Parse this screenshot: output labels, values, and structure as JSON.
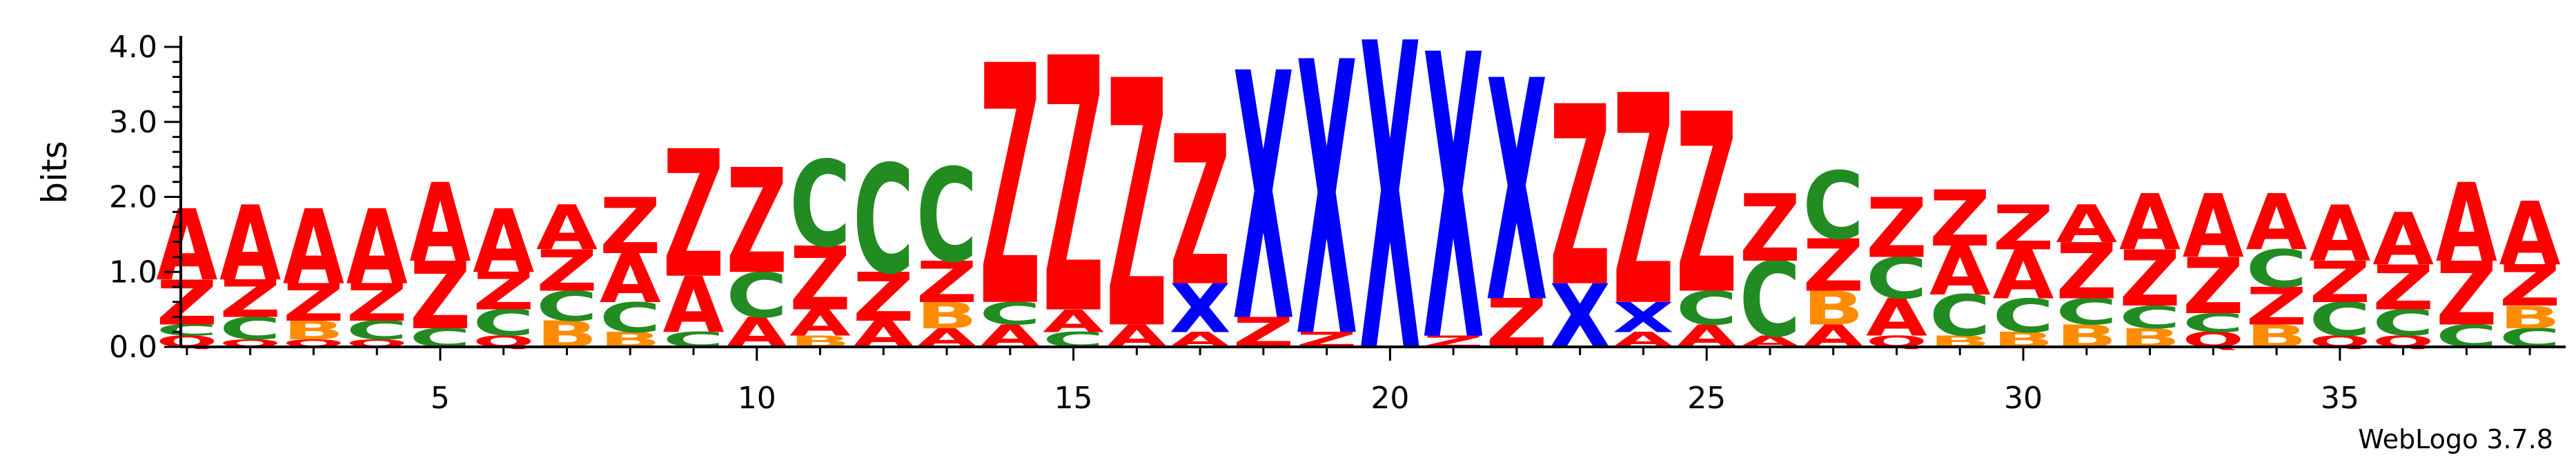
{
  "chart_data": {
    "type": "sequence-logo",
    "ylabel": "bits",
    "ylim": [
      0,
      4.0
    ],
    "yticks": [
      "0.0",
      "1.0",
      "2.0",
      "3.0",
      "4.0"
    ],
    "xticks": [
      5,
      10,
      15,
      20,
      25,
      30,
      35
    ],
    "branding": "WebLogo 3.7.8",
    "colors": {
      "A": "#ff0000",
      "Z": "#ff0000",
      "C": "#228b22",
      "B": "#ff8c00",
      "X": "#0000ff",
      "Q": "#ff0000",
      "O": "#ff0000"
    },
    "positions": [
      {
        "pos": 1,
        "letters": [
          [
            "Q",
            0.15
          ],
          [
            "C",
            0.15
          ],
          [
            "Z",
            0.6
          ],
          [
            "A",
            0.95
          ]
        ]
      },
      {
        "pos": 2,
        "letters": [
          [
            "O",
            0.1
          ],
          [
            "C",
            0.3
          ],
          [
            "Z",
            0.5
          ],
          [
            "A",
            1.0
          ]
        ]
      },
      {
        "pos": 3,
        "letters": [
          [
            "Q",
            0.1
          ],
          [
            "B",
            0.25
          ],
          [
            "Z",
            0.5
          ],
          [
            "A",
            1.0
          ]
        ]
      },
      {
        "pos": 4,
        "letters": [
          [
            "Q",
            0.1
          ],
          [
            "C",
            0.25
          ],
          [
            "Z",
            0.5
          ],
          [
            "A",
            1.0
          ]
        ]
      },
      {
        "pos": 5,
        "letters": [
          [
            "C",
            0.25
          ],
          [
            "Z",
            0.9
          ],
          [
            "A",
            1.05
          ]
        ]
      },
      {
        "pos": 6,
        "letters": [
          [
            "Q",
            0.15
          ],
          [
            "C",
            0.35
          ],
          [
            "Z",
            0.5
          ],
          [
            "A",
            0.85
          ]
        ]
      },
      {
        "pos": 7,
        "letters": [
          [
            "B",
            0.35
          ],
          [
            "C",
            0.4
          ],
          [
            "Z",
            0.55
          ],
          [
            "A",
            0.6
          ]
        ]
      },
      {
        "pos": 8,
        "letters": [
          [
            "B",
            0.2
          ],
          [
            "C",
            0.4
          ],
          [
            "A",
            0.65
          ],
          [
            "Z",
            0.75
          ]
        ]
      },
      {
        "pos": 9,
        "letters": [
          [
            "C",
            0.2
          ],
          [
            "A",
            0.75
          ],
          [
            "Z",
            1.7
          ]
        ]
      },
      {
        "pos": 10,
        "letters": [
          [
            "A",
            0.4
          ],
          [
            "C",
            0.6
          ],
          [
            "Z",
            1.4
          ]
        ]
      },
      {
        "pos": 11,
        "letters": [
          [
            "B",
            0.15
          ],
          [
            "A",
            0.35
          ],
          [
            "Z",
            0.85
          ],
          [
            "C",
            1.15
          ]
        ]
      },
      {
        "pos": 12,
        "letters": [
          [
            "A",
            0.35
          ],
          [
            "Z",
            0.65
          ],
          [
            "C",
            1.45
          ]
        ]
      },
      {
        "pos": 13,
        "letters": [
          [
            "A",
            0.25
          ],
          [
            "B",
            0.35
          ],
          [
            "Z",
            0.55
          ],
          [
            "C",
            1.25
          ]
        ]
      },
      {
        "pos": 14,
        "letters": [
          [
            "A",
            0.3
          ],
          [
            "C",
            0.3
          ],
          [
            "Z",
            3.2
          ]
        ]
      },
      {
        "pos": 15,
        "letters": [
          [
            "C",
            0.2
          ],
          [
            "A",
            0.3
          ],
          [
            "Z",
            3.4
          ]
        ]
      },
      {
        "pos": 16,
        "letters": [
          [
            "A",
            0.3
          ],
          [
            "Z",
            3.3
          ]
        ]
      },
      {
        "pos": 17,
        "letters": [
          [
            "A",
            0.2
          ],
          [
            "X",
            0.65
          ],
          [
            "Z",
            2.0
          ]
        ]
      },
      {
        "pos": 18,
        "letters": [
          [
            "Z",
            0.4
          ],
          [
            "X",
            3.3
          ]
        ]
      },
      {
        "pos": 19,
        "letters": [
          [
            "Z",
            0.2
          ],
          [
            "X",
            3.65
          ]
        ]
      },
      {
        "pos": 20,
        "letters": [
          [
            "X",
            4.1
          ]
        ]
      },
      {
        "pos": 21,
        "letters": [
          [
            "Z",
            0.15
          ],
          [
            "X",
            3.8
          ]
        ]
      },
      {
        "pos": 22,
        "letters": [
          [
            "Z",
            0.65
          ],
          [
            "X",
            2.95
          ]
        ]
      },
      {
        "pos": 23,
        "letters": [
          [
            "X",
            0.85
          ],
          [
            "Z",
            2.4
          ]
        ]
      },
      {
        "pos": 24,
        "letters": [
          [
            "A",
            0.2
          ],
          [
            "X",
            0.4
          ],
          [
            "Z",
            2.8
          ]
        ]
      },
      {
        "pos": 25,
        "letters": [
          [
            "A",
            0.3
          ],
          [
            "C",
            0.45
          ],
          [
            "Z",
            2.4
          ]
        ]
      },
      {
        "pos": 26,
        "letters": [
          [
            "A",
            0.15
          ],
          [
            "C",
            1.0
          ],
          [
            "Z",
            0.9
          ]
        ]
      },
      {
        "pos": 27,
        "letters": [
          [
            "A",
            0.3
          ],
          [
            "B",
            0.45
          ],
          [
            "Z",
            0.7
          ],
          [
            "C",
            0.9
          ]
        ]
      },
      {
        "pos": 28,
        "letters": [
          [
            "Q",
            0.15
          ],
          [
            "A",
            0.5
          ],
          [
            "C",
            0.55
          ],
          [
            "Z",
            0.8
          ]
        ]
      },
      {
        "pos": 29,
        "letters": [
          [
            "B",
            0.15
          ],
          [
            "C",
            0.55
          ],
          [
            "A",
            0.65
          ],
          [
            "Z",
            0.75
          ]
        ]
      },
      {
        "pos": 30,
        "letters": [
          [
            "B",
            0.2
          ],
          [
            "C",
            0.45
          ],
          [
            "A",
            0.65
          ],
          [
            "Z",
            0.6
          ]
        ]
      },
      {
        "pos": 31,
        "letters": [
          [
            "B",
            0.3
          ],
          [
            "C",
            0.35
          ],
          [
            "Z",
            0.75
          ],
          [
            "A",
            0.5
          ]
        ]
      },
      {
        "pos": 32,
        "letters": [
          [
            "B",
            0.25
          ],
          [
            "C",
            0.3
          ],
          [
            "Z",
            0.75
          ],
          [
            "A",
            0.75
          ]
        ]
      },
      {
        "pos": 33,
        "letters": [
          [
            "Q",
            0.2
          ],
          [
            "C",
            0.25
          ],
          [
            "Z",
            0.75
          ],
          [
            "A",
            0.85
          ]
        ]
      },
      {
        "pos": 34,
        "letters": [
          [
            "B",
            0.3
          ],
          [
            "Z",
            0.5
          ],
          [
            "C",
            0.5
          ],
          [
            "A",
            0.75
          ]
        ]
      },
      {
        "pos": 35,
        "letters": [
          [
            "Q",
            0.15
          ],
          [
            "C",
            0.45
          ],
          [
            "Z",
            0.55
          ],
          [
            "A",
            0.75
          ]
        ]
      },
      {
        "pos": 36,
        "letters": [
          [
            "Q",
            0.15
          ],
          [
            "C",
            0.35
          ],
          [
            "Z",
            0.6
          ],
          [
            "A",
            0.7
          ]
        ]
      },
      {
        "pos": 37,
        "letters": [
          [
            "C",
            0.3
          ],
          [
            "Z",
            0.85
          ],
          [
            "A",
            1.05
          ]
        ]
      },
      {
        "pos": 38,
        "letters": [
          [
            "C",
            0.25
          ],
          [
            "B",
            0.3
          ],
          [
            "Z",
            0.55
          ],
          [
            "A",
            0.85
          ]
        ]
      }
    ]
  }
}
